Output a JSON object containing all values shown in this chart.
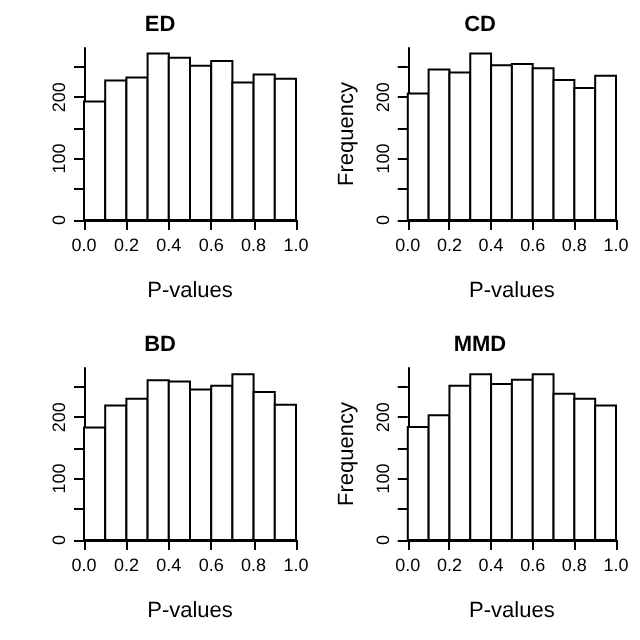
{
  "chart_data": [
    {
      "type": "histogram",
      "title": "ED",
      "xlabel": "P-values",
      "bins": [
        0,
        0.1,
        0.2,
        0.3,
        0.4,
        0.5,
        0.6,
        0.7,
        0.8,
        0.9,
        1.0
      ],
      "values": [
        193,
        227,
        232,
        271,
        264,
        251,
        259,
        224,
        237,
        230
      ],
      "color": "#ffffff",
      "xlim": [
        0,
        1
      ],
      "xticks": [
        {
          "value": 0,
          "label": "0.0"
        },
        {
          "value": 0.2,
          "label": "0.2"
        },
        {
          "value": 0.4,
          "label": "0.4"
        },
        {
          "value": 0.6,
          "label": "0.6"
        },
        {
          "value": 0.8,
          "label": "0.8"
        },
        {
          "value": 1,
          "label": "1.0"
        }
      ],
      "ylim": [
        0,
        280
      ],
      "yticks": [
        0,
        {
          "value": 50,
          "label": null
        },
        100,
        {
          "value": 150,
          "label": null
        },
        200,
        {
          "value": 250,
          "label": null
        }
      ],
      "grid": false
    },
    {
      "type": "histogram",
      "title": "CD",
      "xlabel": "P-values",
      "ylabel": "Frequency",
      "bins": [
        0,
        0.1,
        0.2,
        0.3,
        0.4,
        0.5,
        0.6,
        0.7,
        0.8,
        0.9,
        1.0
      ],
      "values": [
        206,
        245,
        240,
        271,
        252,
        254,
        247,
        228,
        215,
        235
      ],
      "color": "#ffffff",
      "xlim": [
        0,
        1
      ],
      "xticks": [
        {
          "value": 0,
          "label": "0.0"
        },
        {
          "value": 0.2,
          "label": "0.2"
        },
        {
          "value": 0.4,
          "label": "0.4"
        },
        {
          "value": 0.6,
          "label": "0.6"
        },
        {
          "value": 0.8,
          "label": "0.8"
        },
        {
          "value": 1,
          "label": "1.0"
        }
      ],
      "ylim": [
        0,
        280
      ],
      "yticks": [
        0,
        {
          "value": 50,
          "label": null
        },
        100,
        {
          "value": 150,
          "label": null
        },
        200,
        {
          "value": 250,
          "label": null
        }
      ],
      "grid": false
    },
    {
      "type": "histogram",
      "title": "BD",
      "xlabel": "P-values",
      "bins": [
        0,
        0.1,
        0.2,
        0.3,
        0.4,
        0.5,
        0.6,
        0.7,
        0.8,
        0.9,
        1.0
      ],
      "values": [
        183,
        219,
        230,
        260,
        258,
        245,
        251,
        270,
        241,
        220
      ],
      "color": "#ffffff",
      "xlim": [
        0,
        1
      ],
      "xticks": [
        {
          "value": 0,
          "label": "0.0"
        },
        {
          "value": 0.2,
          "label": "0.2"
        },
        {
          "value": 0.4,
          "label": "0.4"
        },
        {
          "value": 0.6,
          "label": "0.6"
        },
        {
          "value": 0.8,
          "label": "0.8"
        },
        {
          "value": 1,
          "label": "1.0"
        }
      ],
      "ylim": [
        0,
        280
      ],
      "yticks": [
        0,
        {
          "value": 50,
          "label": null
        },
        100,
        {
          "value": 150,
          "label": null
        },
        200,
        {
          "value": 250,
          "label": null
        }
      ],
      "grid": false
    },
    {
      "type": "histogram",
      "title": "MMD",
      "xlabel": "P-values",
      "ylabel": "Frequency",
      "bins": [
        0,
        0.1,
        0.2,
        0.3,
        0.4,
        0.5,
        0.6,
        0.7,
        0.8,
        0.9,
        1.0
      ],
      "values": [
        184,
        203,
        251,
        270,
        254,
        261,
        270,
        238,
        230,
        219
      ],
      "color": "#ffffff",
      "xlim": [
        0,
        1
      ],
      "xticks": [
        {
          "value": 0,
          "label": "0.0"
        },
        {
          "value": 0.2,
          "label": "0.2"
        },
        {
          "value": 0.4,
          "label": "0.4"
        },
        {
          "value": 0.6,
          "label": "0.6"
        },
        {
          "value": 0.8,
          "label": "0.8"
        },
        {
          "value": 1,
          "label": "1.0"
        }
      ],
      "ylim": [
        0,
        280
      ],
      "yticks": [
        0,
        {
          "value": 50,
          "label": null
        },
        100,
        {
          "value": 150,
          "label": null
        },
        200,
        {
          "value": 250,
          "label": null
        }
      ],
      "grid": false
    }
  ]
}
